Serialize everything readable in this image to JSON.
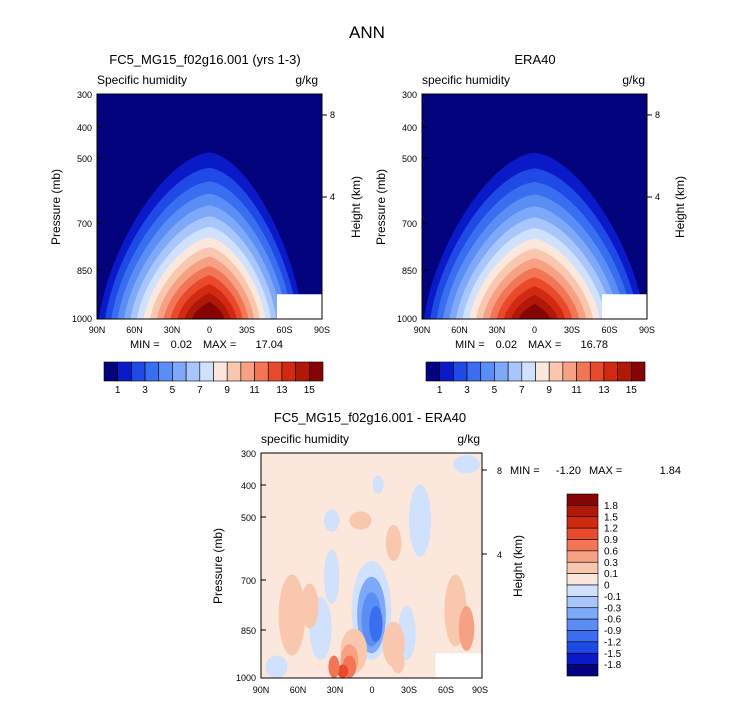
{
  "figure": {
    "title": "ANN"
  },
  "chart_data": [
    {
      "type": "heatmap",
      "title": "FC5_MG15_f02g16.001 (yrs 1-3)",
      "subtitle_left": "Specific humidity",
      "units": "g/kg",
      "xlabel": "",
      "ylabel": "Pressure (mb)",
      "y2label": "Height (km)",
      "x_ticks": [
        "90N",
        "60N",
        "30N",
        "0",
        "30S",
        "60S",
        "90S"
      ],
      "y_ticks": [
        "300",
        "400",
        "500",
        "700",
        "850",
        "1000"
      ],
      "y2_ticks": [
        "8",
        "4"
      ],
      "stats": {
        "min_label": "MIN =",
        "min": "0.02",
        "max_label": "MAX =",
        "max": "17.04"
      },
      "colorbar": {
        "labels": [
          "1",
          "3",
          "5",
          "7",
          "9",
          "11",
          "13",
          "15"
        ],
        "colors": [
          "#03037d",
          "#0a1ac8",
          "#1f4ae6",
          "#3a6ef0",
          "#5a8ef5",
          "#7ea8f8",
          "#a8c6fb",
          "#d0e1fd",
          "#fbe7dc",
          "#f9c6ae",
          "#f6a183",
          "#f27656",
          "#e84a2b",
          "#d22a12",
          "#b01808",
          "#850505"
        ],
        "levels": [
          0,
          1,
          2,
          3,
          4,
          5,
          6,
          7,
          8,
          9,
          10,
          11,
          12,
          13,
          14,
          15
        ]
      },
      "peak_value": 17.04
    },
    {
      "type": "heatmap",
      "title": "ERA40",
      "subtitle_left": "specific humidity",
      "units": "g/kg",
      "xlabel": "",
      "ylabel": "Pressure (mb)",
      "y2label": "Height (km)",
      "x_ticks": [
        "90N",
        "60N",
        "30N",
        "0",
        "30S",
        "60S",
        "90S"
      ],
      "y_ticks": [
        "300",
        "400",
        "500",
        "700",
        "850",
        "1000"
      ],
      "y2_ticks": [
        "8",
        "4"
      ],
      "stats": {
        "min_label": "MIN =",
        "min": "0.02",
        "max_label": "MAX =",
        "max": "16.78"
      },
      "colorbar": {
        "labels": [
          "1",
          "3",
          "5",
          "7",
          "9",
          "11",
          "13",
          "15"
        ],
        "colors": [
          "#03037d",
          "#0a1ac8",
          "#1f4ae6",
          "#3a6ef0",
          "#5a8ef5",
          "#7ea8f8",
          "#a8c6fb",
          "#d0e1fd",
          "#fbe7dc",
          "#f9c6ae",
          "#f6a183",
          "#f27656",
          "#e84a2b",
          "#d22a12",
          "#b01808",
          "#850505"
        ],
        "levels": [
          0,
          1,
          2,
          3,
          4,
          5,
          6,
          7,
          8,
          9,
          10,
          11,
          12,
          13,
          14,
          15
        ]
      },
      "peak_value": 16.78
    },
    {
      "type": "heatmap",
      "title": "FC5_MG15_f02g16.001 - ERA40",
      "subtitle_left": "specific humidity",
      "units": "g/kg",
      "xlabel": "",
      "ylabel": "Pressure (mb)",
      "y2label": "Height (km)",
      "x_ticks": [
        "90N",
        "60N",
        "30N",
        "0",
        "30S",
        "60S",
        "90S"
      ],
      "y_ticks": [
        "300",
        "400",
        "500",
        "700",
        "850",
        "1000"
      ],
      "y2_ticks": [
        "8",
        "4"
      ],
      "stats": {
        "min_label": "MIN =",
        "min": "-1.20",
        "max_label": "MAX =",
        "max": "1.84"
      },
      "colorbar": {
        "labels": [
          "1.8",
          "1.5",
          "1.2",
          "0.9",
          "0.6",
          "0.3",
          "0.1",
          "0",
          "-0.1",
          "-0.3",
          "-0.6",
          "-0.9",
          "-1.2",
          "-1.5",
          "-1.8"
        ],
        "colors": [
          "#850505",
          "#b01808",
          "#d22a12",
          "#e84a2b",
          "#f27656",
          "#f6a183",
          "#f9c6ae",
          "#fbe7dc",
          "#d0e1fd",
          "#a8c6fb",
          "#7ea8f8",
          "#5a8ef5",
          "#3a6ef0",
          "#1f4ae6",
          "#0a1ac8",
          "#03037d"
        ]
      }
    }
  ]
}
